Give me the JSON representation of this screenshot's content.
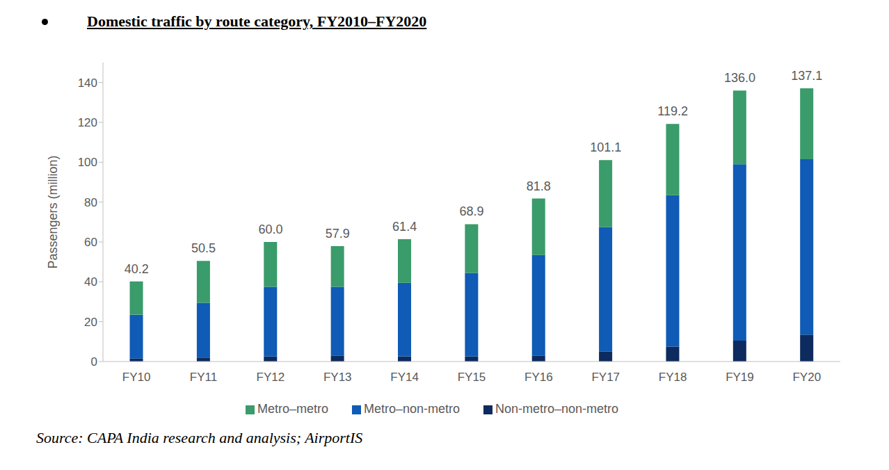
{
  "chart_data": {
    "type": "bar",
    "title": "Domestic traffic by route category, FY2010–FY2020",
    "source": "Source: CAPA India research and analysis; AirportIS",
    "y_label": "Passengers (million)",
    "categories": [
      "FY10",
      "FY11",
      "FY12",
      "FY13",
      "FY14",
      "FY15",
      "FY16",
      "FY17",
      "FY18",
      "FY19",
      "FY20"
    ],
    "series": [
      {
        "name": "Non-metro–non-metro",
        "color": "#0d2b5e",
        "values": [
          1.5,
          2,
          2.5,
          3,
          2.5,
          2.5,
          3,
          5,
          7.5,
          10.5,
          13.5
        ]
      },
      {
        "name": "Metro–non-metro",
        "color": "#0f5bb5",
        "values": [
          22,
          27.5,
          35,
          34.5,
          37,
          42,
          50.5,
          62.5,
          76,
          88.5,
          88
        ]
      },
      {
        "name": "Metro–metro",
        "color": "#3a9b6b",
        "values": [
          16.7,
          21.0,
          22.5,
          20.4,
          21.9,
          24.4,
          28.3,
          33.6,
          35.7,
          37.0,
          35.6
        ]
      }
    ],
    "totals": [
      40.2,
      50.5,
      60.0,
      57.9,
      61.4,
      68.9,
      81.8,
      101.1,
      119.2,
      136.0,
      137.1
    ],
    "total_labels": [
      "40.2",
      "50.5",
      "60.0",
      "57.9",
      "61.4",
      "68.9",
      "81.8",
      "101.1",
      "119.2",
      "136.0",
      "137.1"
    ],
    "ylim": [
      0,
      150
    ],
    "yticks": [
      0,
      20,
      40,
      60,
      80,
      100,
      120,
      140
    ],
    "stacked": true,
    "grid": false,
    "legend": "bottom"
  }
}
